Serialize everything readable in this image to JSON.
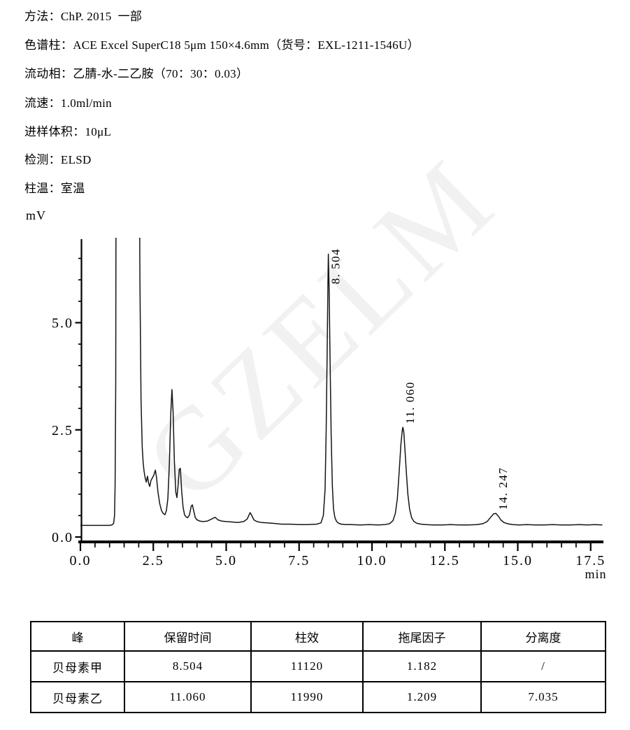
{
  "method_lines": [
    "方法：ChP. 2015  一部",
    "色谱柱：ACE Excel SuperC18 5μm 150×4.6mm（货号：EXL-1211-1546U）",
    "流动相：乙腈-水-二乙胺（70：30：0.03）",
    "流速：1.0ml/min",
    "进样体积：10μL",
    "检测：ELSD",
    "柱温：室温"
  ],
  "watermark_text": "GZELM",
  "chart_data": {
    "type": "line",
    "title": "",
    "xlabel": "min",
    "ylabel": "mV",
    "xlim": [
      0,
      17.9
    ],
    "ylim": [
      0,
      7.0
    ],
    "grid": false,
    "xticks": [
      {
        "v": 0.0,
        "label": "0.0"
      },
      {
        "v": 2.5,
        "label": "2.5"
      },
      {
        "v": 5.0,
        "label": "5.0"
      },
      {
        "v": 7.5,
        "label": "7.5"
      },
      {
        "v": 10.0,
        "label": "10.0"
      },
      {
        "v": 12.5,
        "label": "12.5"
      },
      {
        "v": 15.0,
        "label": "15.0"
      },
      {
        "v": 17.5,
        "label": "17.5"
      }
    ],
    "xtick_minor_step": 0.5,
    "yticks": [
      {
        "v": 0.0,
        "label": "0.0"
      },
      {
        "v": 2.5,
        "label": "2.5"
      },
      {
        "v": 5.0,
        "label": "5.0"
      }
    ],
    "ytick_minor_step": 0.5,
    "peaks": [
      {
        "t": 8.504,
        "apex_mV": 6.6,
        "label": "8. 504"
      },
      {
        "t": 11.06,
        "apex_mV": 2.56,
        "label": "11. 060"
      },
      {
        "t": 14.247,
        "apex_mV": 0.55,
        "label": "14. 247"
      }
    ],
    "solvent_front": {
      "rise_t": 1.2,
      "fall_t": 2.1,
      "clipped": true
    },
    "baseline_mV": 0.28,
    "trace": [
      [
        0.0,
        0.27
      ],
      [
        0.4,
        0.27
      ],
      [
        0.8,
        0.27
      ],
      [
        1.0,
        0.27
      ],
      [
        1.08,
        0.28
      ],
      [
        1.14,
        0.32
      ],
      [
        1.17,
        0.5
      ],
      [
        1.19,
        1.2
      ],
      [
        1.21,
        3.5
      ],
      [
        1.23,
        12
      ],
      [
        2.0,
        12
      ],
      [
        2.04,
        6.0
      ],
      [
        2.08,
        3.2
      ],
      [
        2.12,
        2.1
      ],
      [
        2.15,
        1.75
      ],
      [
        2.18,
        1.55
      ],
      [
        2.22,
        1.38
      ],
      [
        2.26,
        1.28
      ],
      [
        2.3,
        1.42
      ],
      [
        2.34,
        1.25
      ],
      [
        2.38,
        1.18
      ],
      [
        2.42,
        1.32
      ],
      [
        2.47,
        1.38
      ],
      [
        2.52,
        1.45
      ],
      [
        2.57,
        1.56
      ],
      [
        2.61,
        1.4
      ],
      [
        2.66,
        1.05
      ],
      [
        2.72,
        0.78
      ],
      [
        2.78,
        0.62
      ],
      [
        2.84,
        0.55
      ],
      [
        2.9,
        0.52
      ],
      [
        2.95,
        0.62
      ],
      [
        3.0,
        0.9
      ],
      [
        3.05,
        1.7
      ],
      [
        3.1,
        2.9
      ],
      [
        3.14,
        3.44
      ],
      [
        3.18,
        2.9
      ],
      [
        3.22,
        1.8
      ],
      [
        3.27,
        1.05
      ],
      [
        3.31,
        0.92
      ],
      [
        3.35,
        1.2
      ],
      [
        3.39,
        1.58
      ],
      [
        3.43,
        1.6
      ],
      [
        3.47,
        1.1
      ],
      [
        3.52,
        0.7
      ],
      [
        3.57,
        0.52
      ],
      [
        3.62,
        0.47
      ],
      [
        3.68,
        0.45
      ],
      [
        3.74,
        0.52
      ],
      [
        3.8,
        0.72
      ],
      [
        3.84,
        0.75
      ],
      [
        3.89,
        0.6
      ],
      [
        3.94,
        0.45
      ],
      [
        4.0,
        0.4
      ],
      [
        4.1,
        0.37
      ],
      [
        4.2,
        0.36
      ],
      [
        4.35,
        0.37
      ],
      [
        4.5,
        0.42
      ],
      [
        4.62,
        0.46
      ],
      [
        4.72,
        0.4
      ],
      [
        4.85,
        0.37
      ],
      [
        5.0,
        0.36
      ],
      [
        5.2,
        0.35
      ],
      [
        5.4,
        0.34
      ],
      [
        5.6,
        0.36
      ],
      [
        5.72,
        0.42
      ],
      [
        5.82,
        0.57
      ],
      [
        5.88,
        0.5
      ],
      [
        5.95,
        0.4
      ],
      [
        6.05,
        0.36
      ],
      [
        6.2,
        0.34
      ],
      [
        6.4,
        0.33
      ],
      [
        6.6,
        0.32
      ],
      [
        6.9,
        0.3
      ],
      [
        7.2,
        0.3
      ],
      [
        7.5,
        0.29
      ],
      [
        7.8,
        0.29
      ],
      [
        8.1,
        0.3
      ],
      [
        8.25,
        0.33
      ],
      [
        8.33,
        0.5
      ],
      [
        8.39,
        1.1
      ],
      [
        8.43,
        2.5
      ],
      [
        8.46,
        4.2
      ],
      [
        8.49,
        5.9
      ],
      [
        8.504,
        6.6
      ],
      [
        8.53,
        5.8
      ],
      [
        8.56,
        4.2
      ],
      [
        8.6,
        2.4
      ],
      [
        8.64,
        1.2
      ],
      [
        8.68,
        0.65
      ],
      [
        8.73,
        0.45
      ],
      [
        8.79,
        0.36
      ],
      [
        8.86,
        0.32
      ],
      [
        8.95,
        0.3
      ],
      [
        9.1,
        0.29
      ],
      [
        9.3,
        0.29
      ],
      [
        9.6,
        0.28
      ],
      [
        9.9,
        0.29
      ],
      [
        10.2,
        0.28
      ],
      [
        10.45,
        0.29
      ],
      [
        10.6,
        0.31
      ],
      [
        10.72,
        0.38
      ],
      [
        10.8,
        0.55
      ],
      [
        10.87,
        0.9
      ],
      [
        10.93,
        1.5
      ],
      [
        10.99,
        2.15
      ],
      [
        11.04,
        2.5
      ],
      [
        11.06,
        2.56
      ],
      [
        11.09,
        2.45
      ],
      [
        11.13,
        2.05
      ],
      [
        11.18,
        1.5
      ],
      [
        11.23,
        1.0
      ],
      [
        11.29,
        0.65
      ],
      [
        11.36,
        0.45
      ],
      [
        11.44,
        0.36
      ],
      [
        11.54,
        0.32
      ],
      [
        11.68,
        0.3
      ],
      [
        11.85,
        0.29
      ],
      [
        12.1,
        0.28
      ],
      [
        12.4,
        0.28
      ],
      [
        12.7,
        0.29
      ],
      [
        13.0,
        0.28
      ],
      [
        13.3,
        0.28
      ],
      [
        13.6,
        0.29
      ],
      [
        13.8,
        0.31
      ],
      [
        13.95,
        0.36
      ],
      [
        14.07,
        0.46
      ],
      [
        14.17,
        0.54
      ],
      [
        14.25,
        0.55
      ],
      [
        14.33,
        0.49
      ],
      [
        14.42,
        0.4
      ],
      [
        14.52,
        0.34
      ],
      [
        14.65,
        0.31
      ],
      [
        14.82,
        0.29
      ],
      [
        15.05,
        0.28
      ],
      [
        15.3,
        0.29
      ],
      [
        15.6,
        0.28
      ],
      [
        15.9,
        0.28
      ],
      [
        16.2,
        0.29
      ],
      [
        16.5,
        0.28
      ],
      [
        16.8,
        0.28
      ],
      [
        17.1,
        0.29
      ],
      [
        17.4,
        0.28
      ],
      [
        17.65,
        0.29
      ],
      [
        17.9,
        0.28
      ]
    ]
  },
  "table": {
    "headers": [
      "峰",
      "保留时间",
      "柱效",
      "拖尾因子",
      "分离度"
    ],
    "rows": [
      [
        "贝母素甲",
        "8.504",
        "11120",
        "1.182",
        "/"
      ],
      [
        "贝母素乙",
        "11.060",
        "11990",
        "1.209",
        "7.035"
      ]
    ]
  }
}
